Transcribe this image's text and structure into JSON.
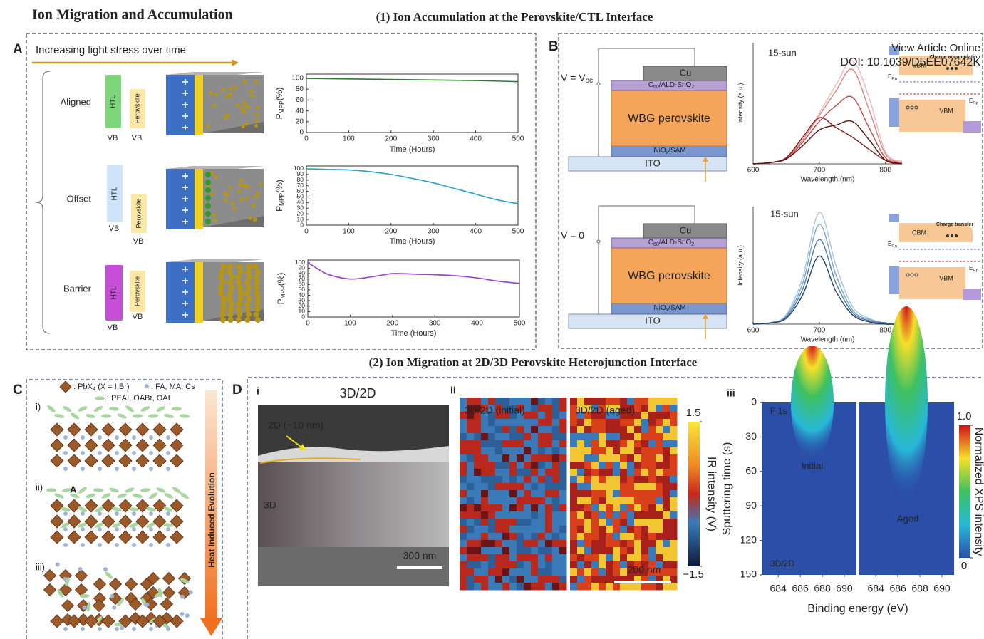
{
  "header": {
    "title": "Ion Migration and Accumulation",
    "section_1": "(1) Ion Accumulation at the Perovskite/CTL Interface",
    "section_2": "(2) Ion Migration at 2D/3D Perovskite Heterojunction Interface"
  },
  "watermark": {
    "line_1": "View Article Online",
    "line_2": "DOI: 10.1039/D5EE07642K"
  },
  "panel_a": {
    "label": "A",
    "arrow_text": "Increasing light stress over time",
    "rows": [
      {
        "name": "Aligned",
        "htl": "HTL",
        "perovskite": "Perovskite",
        "vb": [
          "VB",
          "VB"
        ]
      },
      {
        "name": "Offset",
        "htl": "HTL",
        "perovskite": "Perovskite",
        "vb": [
          "VB",
          "VB"
        ]
      },
      {
        "name": "Barrier",
        "htl": "HTL",
        "perovskite": "Perovskite",
        "vb": [
          "VB",
          "VB"
        ]
      }
    ]
  },
  "panel_b": {
    "label": "B",
    "devices": [
      {
        "voltage": [
          "V = V",
          "oc"
        ],
        "cu": "Cu",
        "etl": [
          "C",
          "60",
          "/ALD-SnO",
          "2"
        ],
        "absorber": "WBG perovskite",
        "htl": [
          "NiO",
          "x",
          "/SAM"
        ],
        "substrate": "ITO"
      },
      {
        "voltage": [
          "V = 0"
        ],
        "cu": "Cu",
        "etl": [
          "C",
          "60",
          "/ALD-SnO",
          "2"
        ],
        "absorber": "WBG perovskite",
        "htl": [
          "NiO",
          "x",
          "/SAM"
        ],
        "substrate": "ITO"
      }
    ],
    "band_diagrams": [
      {
        "cbm": "CBM",
        "vbm": "VBM",
        "process": "Charge accumulation",
        "efn": [
          "E",
          "F,n"
        ],
        "efp": [
          "E",
          "F,p"
        ]
      },
      {
        "cbm": "CBM",
        "vbm": "VBM",
        "process": "Charge transfer",
        "efn": [
          "E",
          "F,n"
        ],
        "efp": [
          "E",
          "F,p"
        ]
      }
    ]
  },
  "panel_c": {
    "label": "C",
    "legend": {
      "pbx": [
        ": PbX",
        "4",
        " (X = I,Br)"
      ],
      "cations": ": FA, MA, Cs",
      "spacers": ": PEAI, OABr, OAI"
    },
    "stages": [
      "i)",
      "ii)",
      "iii)"
    ],
    "marker": "A",
    "arrow_text": "Heat Induced Evolution"
  },
  "panel_d": {
    "label": "D",
    "i": {
      "label": "i",
      "title": "3D/2D",
      "layer_2d": "2D (~10 nm)",
      "layer_3d": "3D",
      "scale_bar": "300 nm"
    },
    "ii": {
      "label": "ii",
      "initial": "3D/2D (initial)",
      "aged": "3D/2D (aged)",
      "scale_bar": "200 nm",
      "colorbar": {
        "lim": [
          -1.5,
          1.5
        ],
        "ticks": [
          {
            "value": -1.5,
            "label": "−1.5"
          },
          1.5
        ],
        "label": "IR intensity (V)"
      }
    },
    "iii": {
      "label": "iii",
      "element": "F 1s",
      "initial": "Initial",
      "aged": "Aged",
      "sample": "3D/2D",
      "ylabel": "Sputtering time (s)",
      "xlabel": "Binding energy (eV)",
      "ylim": [
        0,
        150
      ],
      "yticks": [
        0,
        30,
        60,
        90,
        120,
        150
      ],
      "xlim": [
        682.5,
        691.1
      ],
      "xticks": [
        684,
        686,
        688,
        690
      ],
      "colorbar": {
        "lim": [
          0,
          1
        ],
        "ticks": [
          0,
          {
            "value": 1,
            "label": "1.0"
          }
        ],
        "label": "Normalized XPS intensity"
      }
    }
  },
  "chart_data": [
    {
      "type": "line",
      "x": [
        0,
        100,
        200,
        300,
        400,
        500
      ],
      "series": [
        {
          "color": "#2e7d32",
          "values": [
            100,
            99,
            98,
            97,
            96,
            94
          ]
        }
      ],
      "xlim": [
        0,
        500
      ],
      "xticks": [
        0,
        100,
        200,
        300,
        400,
        500
      ],
      "ylim": [
        0,
        108
      ],
      "yticks": [
        0,
        20,
        40,
        60,
        80,
        100
      ],
      "xlabel": "Time (Hours)",
      "ylabel": [
        "P",
        "MPP",
        "(%)"
      ]
    },
    {
      "type": "line",
      "x": [
        0,
        50,
        100,
        150,
        200,
        250,
        300,
        350,
        400,
        450,
        500
      ],
      "series": [
        {
          "color": "#2a9fd0",
          "values": [
            100,
            99,
            98,
            95,
            90,
            83,
            75,
            65,
            55,
            45,
            38
          ]
        }
      ],
      "xlim": [
        0,
        500
      ],
      "xticks": [
        0,
        100,
        200,
        300,
        400,
        500
      ],
      "ylim": [
        0,
        105
      ],
      "yticks": [
        0,
        10,
        20,
        30,
        40,
        50,
        60,
        70,
        80,
        90,
        100
      ],
      "xlabel": "Time (Hours)",
      "ylabel": [
        "P",
        "MPP",
        "(%)"
      ]
    },
    {
      "type": "line",
      "x": [
        0,
        25,
        50,
        100,
        150,
        200,
        250,
        300,
        350,
        400,
        450,
        500
      ],
      "series": [
        {
          "color": "#9b3fd0",
          "values": [
            100,
            88,
            78,
            70,
            74,
            80,
            79,
            78,
            76,
            72,
            66,
            62
          ]
        }
      ],
      "xlim": [
        0,
        500
      ],
      "xticks": [
        0,
        100,
        200,
        300,
        400,
        500
      ],
      "ylim": [
        0,
        105
      ],
      "yticks": [
        0,
        10,
        20,
        30,
        40,
        50,
        60,
        70,
        80,
        90,
        100
      ],
      "xlabel": "Time (Hours)",
      "ylabel": [
        "P",
        "MPP",
        "(%)"
      ]
    },
    {
      "type": "line",
      "title": "15-sun",
      "x": [
        600,
        625,
        650,
        675,
        700,
        725,
        750,
        775,
        800,
        825
      ],
      "series": [
        {
          "color": "#f2b8b8",
          "values": [
            0,
            0.01,
            0.05,
            0.2,
            0.42,
            0.65,
            0.85,
            0.55,
            0.1,
            0.02
          ]
        },
        {
          "color": "#e08080",
          "values": [
            0,
            0.01,
            0.05,
            0.2,
            0.4,
            0.6,
            0.78,
            0.45,
            0.08,
            0.01
          ]
        },
        {
          "color": "#c04848",
          "values": [
            0,
            0.01,
            0.04,
            0.18,
            0.35,
            0.48,
            0.55,
            0.3,
            0.05,
            0.01
          ]
        },
        {
          "color": "#8b1a1a",
          "values": [
            0,
            0.01,
            0.05,
            0.22,
            0.38,
            0.3,
            0.22,
            0.12,
            0.03,
            0
          ]
        },
        {
          "color": "#5a0f0f",
          "values": [
            0,
            0.01,
            0.04,
            0.15,
            0.28,
            0.32,
            0.35,
            0.2,
            0.03,
            0
          ]
        }
      ],
      "xlim": [
        600,
        825
      ],
      "xticks": [
        600,
        700,
        800
      ],
      "ylim": [
        0,
        1
      ],
      "xlabel": "Wavelength (nm)",
      "ylabel": [
        "Intensity (a.u.)"
      ]
    },
    {
      "type": "line",
      "title": "15-sun",
      "x": [
        600,
        625,
        650,
        675,
        700,
        725,
        750,
        775,
        800,
        825
      ],
      "series": [
        {
          "color": "#a9c6e0",
          "values": [
            0,
            0.01,
            0.08,
            0.4,
            0.95,
            0.5,
            0.15,
            0.05,
            0.01,
            0
          ]
        },
        {
          "color": "#7aa3c9",
          "values": [
            0,
            0.01,
            0.07,
            0.35,
            0.85,
            0.42,
            0.12,
            0.04,
            0.01,
            0
          ]
        },
        {
          "color": "#4d78a8",
          "values": [
            0,
            0.01,
            0.06,
            0.3,
            0.72,
            0.35,
            0.1,
            0.03,
            0.01,
            0
          ]
        },
        {
          "color": "#1f3f66",
          "values": [
            0,
            0.01,
            0.05,
            0.25,
            0.58,
            0.28,
            0.08,
            0.02,
            0,
            0
          ]
        }
      ],
      "xlim": [
        600,
        825
      ],
      "xticks": [
        600,
        700,
        800
      ],
      "ylim": [
        0,
        1
      ],
      "xlabel": "Wavelength (nm)",
      "ylabel": [
        "Intensity (a.u.)"
      ]
    }
  ]
}
